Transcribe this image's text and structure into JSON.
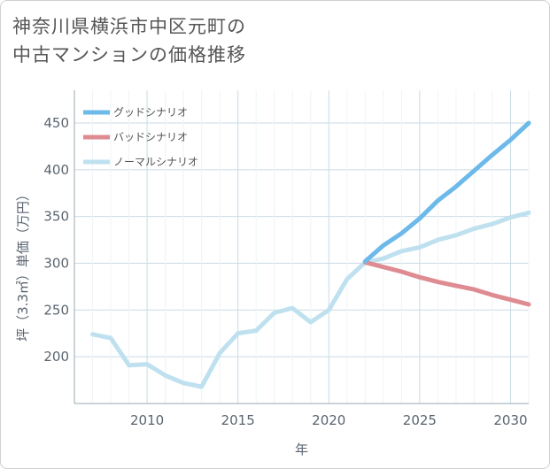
{
  "title_lines": [
    "神奈川県横浜市中区元町の",
    "中古マンションの価格推移"
  ],
  "chart_data": {
    "type": "line",
    "title": "神奈川県横浜市中区元町の中古マンションの価格推移",
    "xlabel": "年",
    "ylabel": "坪（3.3㎡）単価（万円）",
    "xlim": [
      2006,
      2031
    ],
    "ylim": [
      150,
      485
    ],
    "xticks": [
      2010,
      2015,
      2020,
      2025,
      2030
    ],
    "yticks": [
      200,
      250,
      300,
      350,
      400,
      450
    ],
    "grid": true,
    "legend_position": "top-left",
    "series": [
      {
        "name": "グッドシナリオ",
        "color": "#6cb9ea",
        "x": [
          2022,
          2023,
          2024,
          2025,
          2026,
          2027,
          2028,
          2029,
          2030,
          2031
        ],
        "values": [
          302,
          319,
          332,
          348,
          367,
          382,
          399,
          416,
          432,
          450
        ]
      },
      {
        "name": "バッドシナリオ",
        "color": "#df8b92",
        "x": [
          2022,
          2023,
          2024,
          2025,
          2026,
          2027,
          2028,
          2029,
          2030,
          2031
        ],
        "values": [
          301,
          296,
          291,
          285,
          280,
          276,
          272,
          266,
          261,
          256
        ]
      },
      {
        "name": "ノーマルシナリオ",
        "color": "#bfe1ef",
        "x": [
          2007,
          2008,
          2009,
          2010,
          2011,
          2012,
          2013,
          2014,
          2015,
          2016,
          2017,
          2018,
          2019,
          2020,
          2021,
          2022,
          2023,
          2024,
          2025,
          2026,
          2027,
          2028,
          2029,
          2030,
          2031
        ],
        "values": [
          224,
          220,
          191,
          192,
          180,
          172,
          168,
          204,
          225,
          228,
          247,
          252,
          237,
          250,
          283,
          301,
          305,
          313,
          317,
          325,
          330,
          337,
          342,
          349,
          354
        ]
      }
    ]
  }
}
